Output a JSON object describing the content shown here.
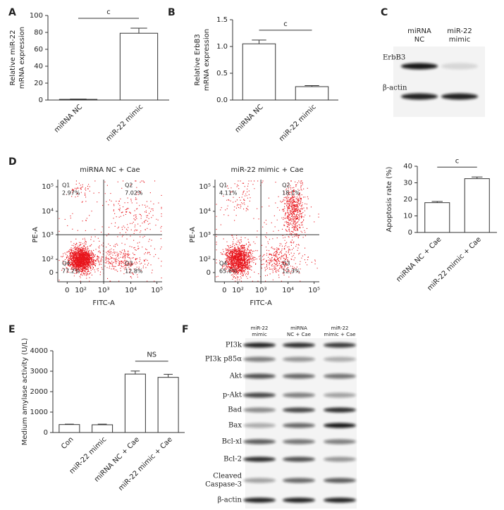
{
  "panel_labels": [
    "A",
    "B",
    "C",
    "D",
    "E",
    "F"
  ],
  "chart_data": [
    {
      "type": "bar",
      "ylabel": [
        "Relative miR-22",
        "mRNA expression"
      ],
      "categories": [
        "miRNA NC",
        "miR-22 mimic"
      ],
      "values": [
        0.8,
        79
      ],
      "errors": [
        0.3,
        6
      ],
      "color": "#ffffff",
      "ylim": [
        0,
        100
      ],
      "yticks": [
        0,
        20,
        40,
        60,
        80,
        100
      ],
      "significance": {
        "label": "c",
        "from": 0,
        "to": 1
      }
    },
    {
      "type": "bar",
      "ylabel": [
        "Relative ErbB3",
        "mRNA expression"
      ],
      "categories": [
        "miRNA NC",
        "miR-22 mimic"
      ],
      "values": [
        1.05,
        0.25
      ],
      "errors": [
        0.07,
        0.02
      ],
      "color": "#ffffff",
      "ylim": [
        0,
        1.5
      ],
      "yticks": [
        {
          "value": 0,
          "label": "0.0"
        },
        0.5,
        {
          "value": 1,
          "label": "1.0"
        },
        1.5
      ],
      "significance": {
        "label": "c",
        "from": 0,
        "to": 1
      }
    },
    {
      "type": "bar",
      "ylabel": [
        "Apoptosis rate (%)"
      ],
      "categories": [
        "miRNA NC + Cae",
        "miR-22 mimic + Cae"
      ],
      "values": [
        18,
        32.5
      ],
      "errors": [
        0.7,
        1
      ],
      "color": "#ffffff",
      "ylim": [
        0,
        40
      ],
      "yticks": [
        0,
        10,
        20,
        30,
        40
      ],
      "significance": {
        "label": "c",
        "from": 0,
        "to": 1
      }
    },
    {
      "type": "bar",
      "ylabel": [
        "Medium amylase activity (U/L)"
      ],
      "categories": [
        "Con",
        "miR-22 mimic",
        "miRNA NC + Cae",
        "miR-22 mimic + Cae"
      ],
      "values": [
        390,
        380,
        2860,
        2700
      ],
      "errors": [
        20,
        30,
        150,
        150
      ],
      "color": "#ffffff",
      "ylim": [
        0,
        4000
      ],
      "yticks": [
        0,
        1000,
        2000,
        3000,
        4000
      ],
      "significance": {
        "label": "NS",
        "from": 2,
        "to": 3
      }
    }
  ],
  "blot_c": {
    "columns": [
      [
        "miRNA",
        "NC"
      ],
      [
        "miR-22",
        "mimic"
      ]
    ],
    "rows": [
      "ErbB3",
      "β-actin"
    ]
  },
  "flow": [
    {
      "title": "miRNA NC + Cae",
      "xlabel": "FITC-A",
      "ylabel": "PE-A",
      "xticks": [
        "0",
        "10²",
        "10³",
        "10⁴",
        "10⁵"
      ],
      "yticks": [
        "10⁵",
        "10⁴",
        "10³",
        "10²",
        "0"
      ],
      "quadrants": [
        {
          "name": "Q1",
          "value": "2.97%"
        },
        {
          "name": "Q2",
          "value": "7.02%"
        },
        {
          "name": "Q3",
          "value": "12.8%"
        },
        {
          "name": "Q4",
          "value": "77.2%"
        }
      ]
    },
    {
      "title": "miR-22 mimic + Cae",
      "xlabel": "FITC-A",
      "ylabel": "PE-A",
      "xticks": [
        "0",
        "10²",
        "10³",
        "10⁴",
        "10⁵"
      ],
      "yticks": [
        "10⁵",
        "10⁴",
        "10³",
        "10²",
        "0"
      ],
      "quadrants": [
        {
          "name": "Q1",
          "value": "4.11%"
        },
        {
          "name": "Q2",
          "value": "18.1%"
        },
        {
          "name": "Q3",
          "value": "12.3%"
        },
        {
          "name": "Q4",
          "value": "65.6%"
        }
      ]
    }
  ],
  "blot_f": {
    "columns": [
      [
        "miR-22",
        "mimic"
      ],
      [
        "miRNA",
        "NC + Cae"
      ],
      [
        "miR-22",
        "mimic + Cae"
      ]
    ],
    "rows": [
      [
        "PI3k"
      ],
      [
        "PI3k p85α"
      ],
      [
        "Akt"
      ],
      [
        "p-Akt"
      ],
      [
        "Bad"
      ],
      [
        "Bax"
      ],
      [
        "Bcl-xl"
      ],
      [
        "Bcl-2"
      ],
      [
        "Cleaved",
        "Caspase-3"
      ],
      [
        "β-actin"
      ]
    ]
  }
}
